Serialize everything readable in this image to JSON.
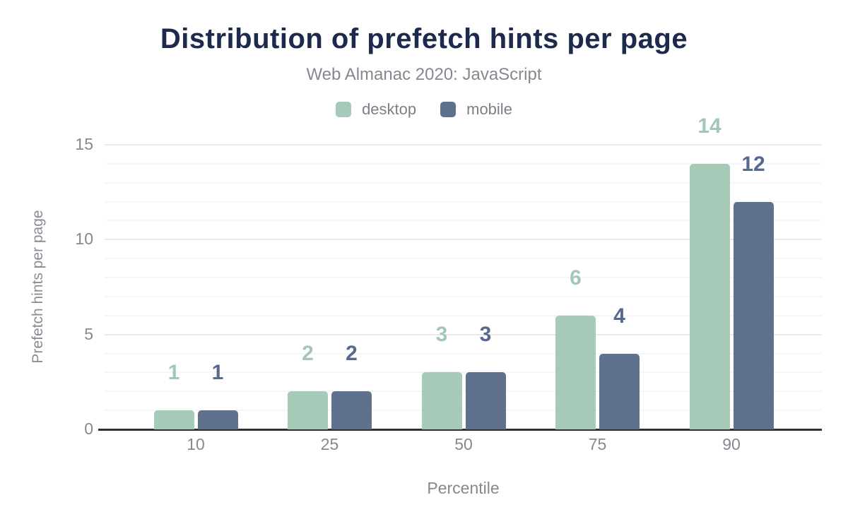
{
  "chart_data": {
    "type": "bar",
    "title": "Distribution of prefetch hints per page",
    "subtitle": "Web Almanac 2020: JavaScript",
    "xlabel": "Percentile",
    "ylabel": "Prefetch hints per page",
    "categories": [
      "10",
      "25",
      "50",
      "75",
      "90"
    ],
    "series": [
      {
        "name": "desktop",
        "values": [
          1,
          2,
          3,
          6,
          14
        ],
        "color": "#a7c9b8",
        "label_color": "#a3c7b5"
      },
      {
        "name": "mobile",
        "values": [
          1,
          2,
          3,
          4,
          12
        ],
        "color": "#5f718d",
        "label_color": "#566a8e"
      }
    ],
    "ylim": [
      0,
      15
    ],
    "yticks": [
      0,
      5,
      10,
      15
    ],
    "grid": "horizontal: minor line every 1 unit, major line every 5 units",
    "legend_position": "top-center",
    "value_labels": "above each bar, colored per series"
  },
  "colors": {
    "background": "#ffffff",
    "title": "#1e2a4c",
    "subtitle": "#85898f",
    "legend_text": "#7b7f86",
    "axis_text": "#85898f",
    "axis_line": "#303030",
    "grid_major": "#eaeaea",
    "grid_minor": "#f6f6f6"
  }
}
